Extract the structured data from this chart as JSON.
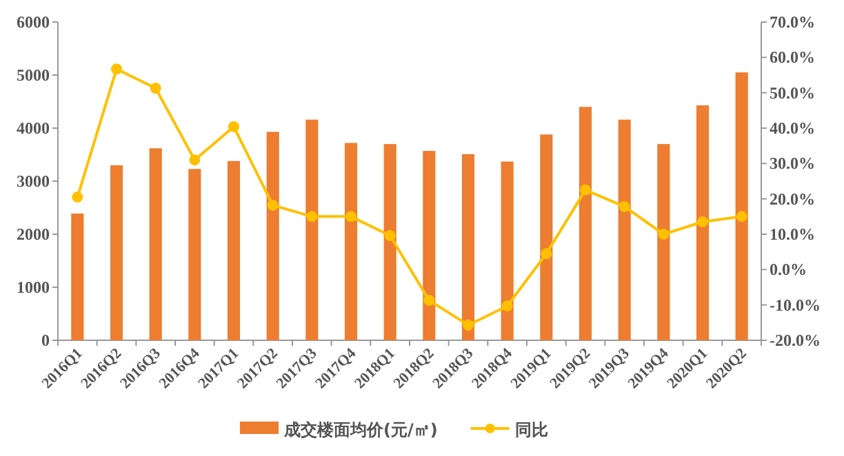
{
  "chart_data": {
    "type": "bar",
    "categories": [
      "2016Q1",
      "2016Q2",
      "2016Q3",
      "2016Q4",
      "2017Q1",
      "2017Q2",
      "2017Q3",
      "2017Q4",
      "2018Q1",
      "2018Q2",
      "2018Q3",
      "2018Q4",
      "2019Q1",
      "2019Q2",
      "2019Q3",
      "2019Q4",
      "2020Q1",
      "2020Q2"
    ],
    "series": [
      {
        "name": "成交楼面均价(元/㎡)",
        "color": "#ed7d31",
        "values": [
          2390,
          3300,
          3620,
          3230,
          3380,
          3930,
          4160,
          3720,
          3700,
          3570,
          3510,
          3370,
          3880,
          4400,
          4160,
          3700,
          4430,
          5050
        ]
      },
      {
        "name": "同比",
        "type": "line",
        "axis": "y2",
        "color": "#ffc000",
        "marker": "circle",
        "values": [
          20.5,
          56.7,
          51.3,
          31,
          40.4,
          18.2,
          15,
          15,
          9.6,
          -8.7,
          -15.7,
          -10.3,
          4.5,
          22.5,
          17.8,
          10,
          13.5,
          15
        ]
      }
    ],
    "ylim": [
      0,
      6000
    ],
    "yticks": [
      0,
      1000,
      2000,
      3000,
      4000,
      5000,
      6000
    ],
    "y2lim": [
      -20,
      70
    ],
    "y2ticks": [
      {
        "value": -20,
        "label": "-20.0%"
      },
      {
        "value": -10,
        "label": "-10.0%"
      },
      {
        "value": 0,
        "label": "0.0%"
      },
      {
        "value": 10,
        "label": "10.0%"
      },
      {
        "value": 20,
        "label": "20.0%"
      },
      {
        "value": 30,
        "label": "30.0%"
      },
      {
        "value": 40,
        "label": "40.0%"
      },
      {
        "value": 50,
        "label": "50.0%"
      },
      {
        "value": 60,
        "label": "60.0%"
      },
      {
        "value": 70,
        "label": "70.0%"
      }
    ],
    "legend": "bottom"
  }
}
